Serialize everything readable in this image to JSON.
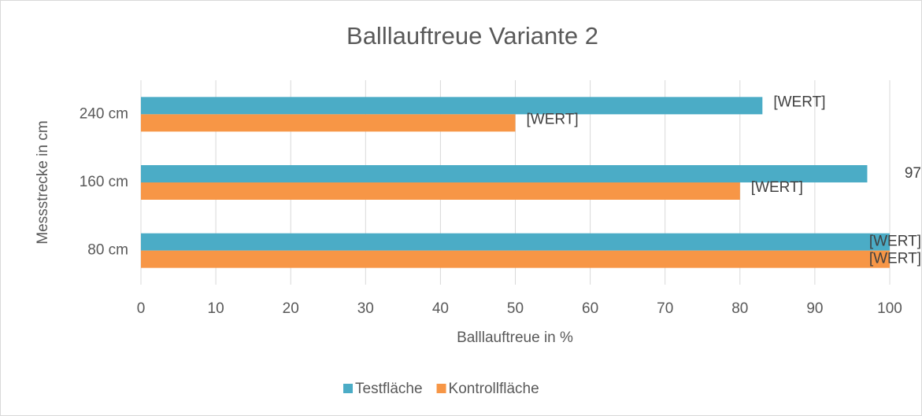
{
  "chart_data": {
    "type": "barh",
    "title": "Balllauftreue Variante 2",
    "xlabel": "Balllauftreue in %",
    "ylabel": "Messstrecke in cm",
    "categories": [
      "80 cm",
      "160 cm",
      "240 cm"
    ],
    "series": [
      {
        "name": "Testfläche",
        "color": "#4bacc6",
        "values": [
          100,
          97,
          83
        ],
        "value_labels": [
          "[WERT]",
          "97",
          "[WERT]"
        ]
      },
      {
        "name": "Kontrollfläche",
        "color": "#f79646",
        "values": [
          100,
          80,
          50
        ],
        "value_labels": [
          "[WERT]",
          "[WERT]",
          "[WERT]"
        ]
      }
    ],
    "xlim": [
      0,
      100
    ],
    "xticks": [
      0,
      10,
      20,
      30,
      40,
      50,
      60,
      70,
      80,
      90,
      100
    ],
    "grid": true,
    "legend": "bottom"
  }
}
